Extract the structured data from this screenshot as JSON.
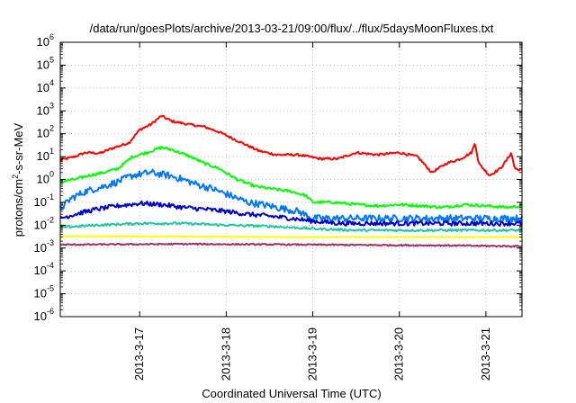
{
  "chart_data": {
    "type": "line",
    "title": "/data/run/goesPlots/archive/2013-03-21/09:00/flux/../flux/5daysMoonFluxes.txt",
    "xlabel": "Coordinated Universal Time (UTC)",
    "ylabel": {
      "prefix": "protons/cm",
      "sup": "2",
      "suffix": "-s-sr-MeV"
    },
    "x_range": [
      "2013-03-16T02:00",
      "2013-03-21T10:00"
    ],
    "x_ticks": [
      "2013-3-17",
      "2013-3-18",
      "2013-3-19",
      "2013-3-20",
      "2013-3-21"
    ],
    "y_scale": "log",
    "ylim": [
      1e-06,
      1000000.0
    ],
    "y_ticks": [
      {
        "base": "10",
        "exp": "-6"
      },
      {
        "base": "10",
        "exp": "-5"
      },
      {
        "base": "10",
        "exp": "-4"
      },
      {
        "base": "10",
        "exp": "-3"
      },
      {
        "base": "10",
        "exp": "-2"
      },
      {
        "base": "10",
        "exp": "-1"
      },
      {
        "base": "10",
        "exp": "0"
      },
      {
        "base": "10",
        "exp": "1"
      },
      {
        "base": "10",
        "exp": "2"
      },
      {
        "base": "10",
        "exp": "3"
      },
      {
        "base": "10",
        "exp": "4"
      },
      {
        "base": "10",
        "exp": "5"
      },
      {
        "base": "10",
        "exp": "6"
      }
    ],
    "grid": true,
    "series": [
      {
        "color": "#ff0000",
        "noise": 0.05,
        "points": [
          [
            "2013-03-16T02:00",
            7
          ],
          [
            "2013-03-16T06:00",
            10
          ],
          [
            "2013-03-16T09:00",
            15
          ],
          [
            "2013-03-16T13:00",
            14
          ],
          [
            "2013-03-16T17:00",
            25
          ],
          [
            "2013-03-16T21:00",
            40
          ],
          [
            "2013-03-17T00:00",
            150
          ],
          [
            "2013-03-17T03:00",
            250
          ],
          [
            "2013-03-17T06:00",
            600
          ],
          [
            "2013-03-17T09:00",
            350
          ],
          [
            "2013-03-17T14:00",
            250
          ],
          [
            "2013-03-17T18:00",
            200
          ],
          [
            "2013-03-17T22:00",
            120
          ],
          [
            "2013-03-18T03:00",
            50
          ],
          [
            "2013-03-18T09:00",
            18
          ],
          [
            "2013-03-18T14:00",
            12
          ],
          [
            "2013-03-18T20:00",
            12
          ],
          [
            "2013-03-19T02:00",
            8
          ],
          [
            "2013-03-19T07:00",
            8
          ],
          [
            "2013-03-19T12:00",
            15
          ],
          [
            "2013-03-19T18:00",
            12
          ],
          [
            "2013-03-20T00:00",
            15
          ],
          [
            "2013-03-20T05:00",
            10
          ],
          [
            "2013-03-20T09:00",
            2
          ],
          [
            "2013-03-20T13:00",
            5
          ],
          [
            "2013-03-20T17:00",
            8
          ],
          [
            "2013-03-20T20:00",
            15
          ],
          [
            "2013-03-20T21:00",
            40
          ],
          [
            "2013-03-20T22:00",
            5
          ],
          [
            "2013-03-21T01:00",
            1.5
          ],
          [
            "2013-03-21T04:00",
            3
          ],
          [
            "2013-03-21T06:00",
            8
          ],
          [
            "2013-03-21T07:00",
            15
          ],
          [
            "2013-03-21T08:00",
            3
          ],
          [
            "2013-03-21T10:00",
            2.5
          ]
        ]
      },
      {
        "color": "#00ff00",
        "noise": 0.06,
        "points": [
          [
            "2013-03-16T02:00",
            0.8
          ],
          [
            "2013-03-16T06:00",
            1
          ],
          [
            "2013-03-16T10:00",
            1.5
          ],
          [
            "2013-03-16T14:00",
            2
          ],
          [
            "2013-03-16T18:00",
            3
          ],
          [
            "2013-03-16T22:00",
            10
          ],
          [
            "2013-03-17T02:00",
            15
          ],
          [
            "2013-03-17T06:00",
            25
          ],
          [
            "2013-03-17T09:00",
            20
          ],
          [
            "2013-03-17T14:00",
            10
          ],
          [
            "2013-03-17T18:00",
            5
          ],
          [
            "2013-03-17T22:00",
            3
          ],
          [
            "2013-03-18T03:00",
            1
          ],
          [
            "2013-03-18T08:00",
            0.5
          ],
          [
            "2013-03-18T12:00",
            0.4
          ],
          [
            "2013-03-18T18:00",
            0.3
          ],
          [
            "2013-03-18T22:00",
            0.2
          ],
          [
            "2013-03-19T00:00",
            0.1
          ],
          [
            "2013-03-19T06:00",
            0.1
          ],
          [
            "2013-03-19T12:00",
            0.08
          ],
          [
            "2013-03-19T18:00",
            0.07
          ],
          [
            "2013-03-20T00:00",
            0.08
          ],
          [
            "2013-03-20T06:00",
            0.07
          ],
          [
            "2013-03-20T12:00",
            0.06
          ],
          [
            "2013-03-20T18:00",
            0.08
          ],
          [
            "2013-03-21T00:00",
            0.07
          ],
          [
            "2013-03-21T06:00",
            0.06
          ],
          [
            "2013-03-21T10:00",
            0.07
          ]
        ]
      },
      {
        "color": "#0077ff",
        "noise": 0.15,
        "points": [
          [
            "2013-03-16T02:00",
            0.05
          ],
          [
            "2013-03-16T05:00",
            0.15
          ],
          [
            "2013-03-16T09:00",
            0.3
          ],
          [
            "2013-03-16T14:00",
            0.5
          ],
          [
            "2013-03-16T18:00",
            0.8
          ],
          [
            "2013-03-16T22:00",
            1.5
          ],
          [
            "2013-03-17T03:00",
            2
          ],
          [
            "2013-03-17T08:00",
            1.5
          ],
          [
            "2013-03-17T12:00",
            1
          ],
          [
            "2013-03-17T16:00",
            0.6
          ],
          [
            "2013-03-17T20:00",
            0.4
          ],
          [
            "2013-03-18T01:00",
            0.2
          ],
          [
            "2013-03-18T06:00",
            0.1
          ],
          [
            "2013-03-18T10:00",
            0.08
          ],
          [
            "2013-03-18T14:00",
            0.06
          ],
          [
            "2013-03-18T20:00",
            0.04
          ],
          [
            "2013-03-19T00:00",
            0.02
          ],
          [
            "2013-03-19T08:00",
            0.02
          ],
          [
            "2013-03-19T16:00",
            0.02
          ],
          [
            "2013-03-20T00:00",
            0.02
          ],
          [
            "2013-03-20T08:00",
            0.02
          ],
          [
            "2013-03-20T16:00",
            0.02
          ],
          [
            "2013-03-21T00:00",
            0.02
          ],
          [
            "2013-03-21T10:00",
            0.02
          ]
        ]
      },
      {
        "color": "#0000cc",
        "noise": 0.1,
        "points": [
          [
            "2013-03-16T02:00",
            0.02
          ],
          [
            "2013-03-16T06:00",
            0.03
          ],
          [
            "2013-03-16T12:00",
            0.05
          ],
          [
            "2013-03-16T18:00",
            0.07
          ],
          [
            "2013-03-17T00:00",
            0.09
          ],
          [
            "2013-03-17T06:00",
            0.08
          ],
          [
            "2013-03-17T12:00",
            0.06
          ],
          [
            "2013-03-17T18:00",
            0.05
          ],
          [
            "2013-03-18T00:00",
            0.04
          ],
          [
            "2013-03-18T06:00",
            0.03
          ],
          [
            "2013-03-18T12:00",
            0.025
          ],
          [
            "2013-03-18T18:00",
            0.02
          ],
          [
            "2013-03-19T00:00",
            0.015
          ],
          [
            "2013-03-19T08:00",
            0.012
          ],
          [
            "2013-03-19T16:00",
            0.012
          ],
          [
            "2013-03-20T00:00",
            0.012
          ],
          [
            "2013-03-20T08:00",
            0.012
          ],
          [
            "2013-03-20T16:00",
            0.012
          ],
          [
            "2013-03-21T00:00",
            0.012
          ],
          [
            "2013-03-21T10:00",
            0.012
          ]
        ]
      },
      {
        "color": "#1fc8a0",
        "noise": 0.05,
        "points": [
          [
            "2013-03-16T02:00",
            0.008
          ],
          [
            "2013-03-16T12:00",
            0.01
          ],
          [
            "2013-03-17T00:00",
            0.012
          ],
          [
            "2013-03-17T12:00",
            0.012
          ],
          [
            "2013-03-18T00:00",
            0.01
          ],
          [
            "2013-03-18T12:00",
            0.009
          ],
          [
            "2013-03-19T00:00",
            0.007
          ],
          [
            "2013-03-19T12:00",
            0.006
          ],
          [
            "2013-03-20T00:00",
            0.006
          ],
          [
            "2013-03-20T12:00",
            0.006
          ],
          [
            "2013-03-21T00:00",
            0.006
          ],
          [
            "2013-03-21T10:00",
            0.006
          ]
        ]
      },
      {
        "color": "#ffff00",
        "noise": 0.01,
        "points": [
          [
            "2013-03-16T02:00",
            0.0033
          ],
          [
            "2013-03-17T12:00",
            0.0032
          ],
          [
            "2013-03-19T00:00",
            0.003
          ],
          [
            "2013-03-20T12:00",
            0.003
          ],
          [
            "2013-03-21T10:00",
            0.003
          ]
        ]
      },
      {
        "color": "#993366",
        "noise": 0.03,
        "points": [
          [
            "2013-03-16T02:00",
            0.0014
          ],
          [
            "2013-03-17T12:00",
            0.0015
          ],
          [
            "2013-03-19T00:00",
            0.0014
          ],
          [
            "2013-03-20T12:00",
            0.0013
          ],
          [
            "2013-03-21T10:00",
            0.0012
          ]
        ]
      }
    ]
  }
}
